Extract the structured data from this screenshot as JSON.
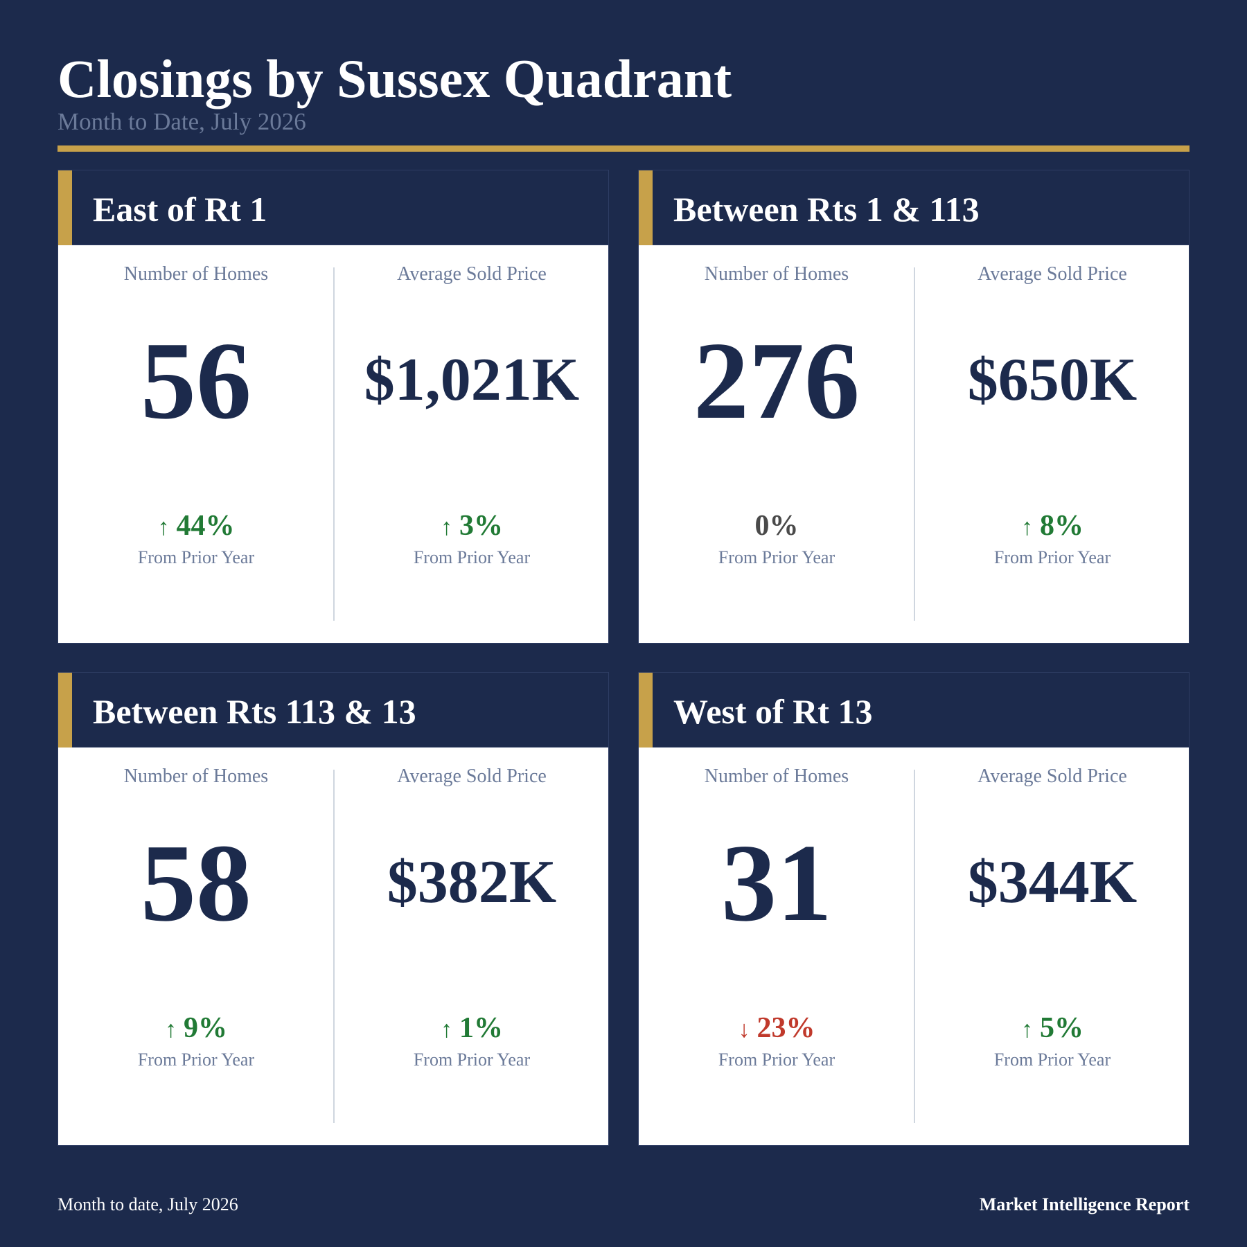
{
  "header": {
    "title": "Closings by Sussex Quadrant",
    "subtitle": "Month to Date, July 2026"
  },
  "colors": {
    "background": "#1c2a4c",
    "accent": "#c7a14a",
    "positive": "#217a35",
    "negative": "#c0392b",
    "neutral": "#4a4a4a"
  },
  "metric_labels": {
    "homes": "Number of Homes",
    "price": "Average Sold Price",
    "change_caption": "From Prior Year"
  },
  "quadrants": [
    {
      "name": "East of Rt 1",
      "homes": {
        "value": "56",
        "change": "44%",
        "direction": "up",
        "arrow": "↑"
      },
      "price": {
        "value": "$1,021K",
        "change": "3%",
        "direction": "up",
        "arrow": "↑"
      }
    },
    {
      "name": "Between Rts 1 & 113",
      "homes": {
        "value": "276",
        "change": "0%",
        "direction": "flat",
        "arrow": ""
      },
      "price": {
        "value": "$650K",
        "change": "8%",
        "direction": "up",
        "arrow": "↑"
      }
    },
    {
      "name": "Between Rts 113 & 13",
      "homes": {
        "value": "58",
        "change": "9%",
        "direction": "up",
        "arrow": "↑"
      },
      "price": {
        "value": "$382K",
        "change": "1%",
        "direction": "up",
        "arrow": "↑"
      }
    },
    {
      "name": "West of Rt 13",
      "homes": {
        "value": "31",
        "change": "23%",
        "direction": "down",
        "arrow": "↓"
      },
      "price": {
        "value": "$344K",
        "change": "5%",
        "direction": "up",
        "arrow": "↑"
      }
    }
  ],
  "footer": {
    "left": "Month to date, July 2026",
    "right": "Market Intelligence Report"
  }
}
